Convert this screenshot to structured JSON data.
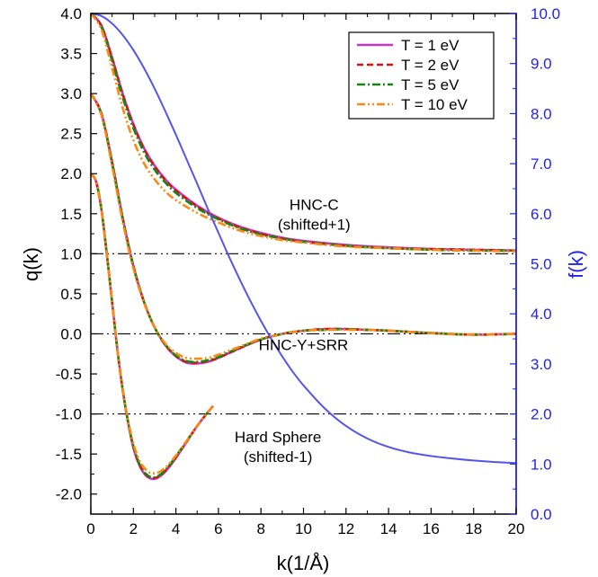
{
  "chart_data": {
    "type": "line",
    "xlabel": "k(1/Å)",
    "ylabel_left": "q(k)",
    "ylabel_right": "f(k)",
    "xlim": [
      0,
      20
    ],
    "ylim_left": [
      -2.25,
      4.0
    ],
    "ylim_right": [
      0.0,
      10.0
    ],
    "x_ticks": [
      "0",
      "2",
      "4",
      "6",
      "8",
      "10",
      "12",
      "14",
      "16",
      "18",
      "20"
    ],
    "y_ticks_left": [
      "4.0",
      "3.5",
      "3.0",
      "2.5",
      "2.0",
      "1.5",
      "1.0",
      "0.5",
      "0.0",
      "-0.5",
      "-1.0",
      "-1.5",
      "-2.0"
    ],
    "y_ticks_right": [
      "10.0",
      "9.0",
      "8.0",
      "7.0",
      "6.0",
      "5.0",
      "4.0",
      "3.0",
      "2.0",
      "1.0",
      "0.0"
    ],
    "reference_lines": [
      1.0,
      0.0,
      -1.0
    ],
    "legend": {
      "placement": "top-right",
      "entries": [
        {
          "label": "T = 1 eV",
          "color": "#cc33cc",
          "dash": "solid"
        },
        {
          "label": "T = 2 eV",
          "color": "#dd1111",
          "dash": "dashed"
        },
        {
          "label": "T = 5 eV",
          "color": "#118811",
          "dash": "dash-dot"
        },
        {
          "label": "T = 10 eV",
          "color": "#ff8811",
          "dash": "dash-dot-dot"
        }
      ]
    },
    "annotations": [
      {
        "text": "HNC-C",
        "x": 10.5,
        "y": 1.55
      },
      {
        "text": "(shifted+1)",
        "x": 10.5,
        "y": 1.3
      },
      {
        "text": "HNC-Y+SRR",
        "x": 10.0,
        "y": -0.2
      },
      {
        "text": "Hard Sphere",
        "x": 8.8,
        "y": -1.35
      },
      {
        "text": "(shifted-1)",
        "x": 8.8,
        "y": -1.6
      }
    ],
    "groups": [
      {
        "group": "HNC-C (shifted+1)",
        "axis": "left",
        "series": [
          {
            "legend": "T = 1 eV",
            "x": [
              0,
              0.5,
              1,
              1.5,
              2,
              2.5,
              3,
              3.5,
              4,
              5,
              6,
              7,
              8,
              9,
              10,
              12,
              14,
              16,
              18,
              20
            ],
            "y": [
              4.0,
              3.85,
              3.45,
              3.0,
              2.62,
              2.32,
              2.1,
              1.93,
              1.8,
              1.6,
              1.45,
              1.34,
              1.26,
              1.2,
              1.16,
              1.11,
              1.08,
              1.06,
              1.05,
              1.04
            ]
          },
          {
            "legend": "T = 2 eV",
            "x": [
              0,
              0.5,
              1,
              1.5,
              2,
              2.5,
              3,
              3.5,
              4,
              5,
              6,
              7,
              8,
              9,
              10,
              12,
              14,
              16,
              18,
              20
            ],
            "y": [
              4.0,
              3.84,
              3.44,
              2.99,
              2.61,
              2.31,
              2.09,
              1.92,
              1.79,
              1.59,
              1.44,
              1.33,
              1.25,
              1.19,
              1.15,
              1.1,
              1.07,
              1.06,
              1.05,
              1.04
            ]
          },
          {
            "legend": "T = 5 eV",
            "x": [
              0,
              0.5,
              1,
              1.5,
              2,
              2.5,
              3,
              3.5,
              4,
              5,
              6,
              7,
              8,
              9,
              10,
              12,
              14,
              16,
              18,
              20
            ],
            "y": [
              4.0,
              3.83,
              3.41,
              2.95,
              2.57,
              2.27,
              2.05,
              1.89,
              1.76,
              1.57,
              1.43,
              1.32,
              1.24,
              1.19,
              1.15,
              1.1,
              1.07,
              1.05,
              1.04,
              1.04
            ]
          },
          {
            "legend": "T = 10 eV",
            "x": [
              0,
              0.5,
              1,
              1.5,
              2,
              2.5,
              3,
              3.5,
              4,
              5,
              6,
              7,
              8,
              9,
              10,
              12,
              14,
              16,
              18,
              20
            ],
            "y": [
              4.0,
              3.8,
              3.32,
              2.82,
              2.42,
              2.13,
              1.93,
              1.78,
              1.67,
              1.51,
              1.39,
              1.29,
              1.22,
              1.17,
              1.14,
              1.09,
              1.07,
              1.05,
              1.04,
              1.03
            ]
          }
        ]
      },
      {
        "group": "HNC-Y+SRR",
        "axis": "left",
        "series": [
          {
            "legend": "T = 1 eV",
            "x": [
              0,
              0.5,
              1,
              1.5,
              2,
              2.5,
              3,
              3.5,
              4,
              4.5,
              5,
              5.5,
              6,
              7,
              8,
              9,
              10,
              11,
              12,
              13,
              14,
              16,
              18,
              20
            ],
            "y": [
              3.0,
              2.75,
              2.15,
              1.45,
              0.85,
              0.4,
              0.08,
              -0.14,
              -0.28,
              -0.36,
              -0.37,
              -0.35,
              -0.3,
              -0.18,
              -0.07,
              0.0,
              0.04,
              0.06,
              0.06,
              0.05,
              0.04,
              0.01,
              -0.01,
              0.0
            ]
          },
          {
            "legend": "T = 2 eV",
            "x": [
              0,
              0.5,
              1,
              1.5,
              2,
              2.5,
              3,
              3.5,
              4,
              4.5,
              5,
              5.5,
              6,
              7,
              8,
              9,
              10,
              11,
              12,
              13,
              14,
              16,
              18,
              20
            ],
            "y": [
              3.0,
              2.75,
              2.14,
              1.44,
              0.85,
              0.4,
              0.08,
              -0.14,
              -0.28,
              -0.35,
              -0.36,
              -0.34,
              -0.3,
              -0.18,
              -0.07,
              0.0,
              0.04,
              0.06,
              0.06,
              0.05,
              0.04,
              0.01,
              -0.01,
              0.0
            ]
          },
          {
            "legend": "T = 5 eV",
            "x": [
              0,
              0.5,
              1,
              1.5,
              2,
              2.5,
              3,
              3.5,
              4,
              4.5,
              5,
              5.5,
              6,
              7,
              8,
              9,
              10,
              11,
              12,
              13,
              14,
              16,
              18,
              20
            ],
            "y": [
              3.0,
              2.74,
              2.13,
              1.43,
              0.84,
              0.4,
              0.08,
              -0.13,
              -0.27,
              -0.34,
              -0.35,
              -0.33,
              -0.29,
              -0.17,
              -0.07,
              0.0,
              0.04,
              0.05,
              0.06,
              0.05,
              0.04,
              0.01,
              -0.01,
              0.0
            ]
          },
          {
            "legend": "T = 10 eV",
            "x": [
              0,
              0.5,
              1,
              1.5,
              2,
              2.5,
              3,
              3.5,
              4,
              4.5,
              5,
              5.5,
              6,
              7,
              8,
              9,
              10,
              11,
              12,
              13,
              14,
              16,
              18,
              20
            ],
            "y": [
              3.0,
              2.73,
              2.1,
              1.4,
              0.82,
              0.39,
              0.08,
              -0.12,
              -0.24,
              -0.3,
              -0.31,
              -0.3,
              -0.26,
              -0.16,
              -0.06,
              0.0,
              0.04,
              0.05,
              0.05,
              0.05,
              0.04,
              0.01,
              -0.01,
              0.0
            ]
          }
        ]
      },
      {
        "group": "Hard Sphere (shifted-1)",
        "axis": "left",
        "series": [
          {
            "legend": "T = 1 eV",
            "x": [
              0,
              0.25,
              0.5,
              0.75,
              1,
              1.25,
              1.5,
              1.75,
              2,
              2.25,
              2.5,
              2.75,
              3,
              3.25,
              3.5,
              3.75,
              4,
              4.5,
              5,
              5.5,
              5.75
            ],
            "y": [
              2.0,
              1.9,
              1.55,
              1.0,
              0.4,
              -0.2,
              -0.7,
              -1.1,
              -1.42,
              -1.62,
              -1.74,
              -1.8,
              -1.81,
              -1.78,
              -1.72,
              -1.64,
              -1.55,
              -1.35,
              -1.15,
              -0.98,
              -0.9
            ]
          },
          {
            "legend": "T = 2 eV",
            "x": [
              0,
              0.25,
              0.5,
              0.75,
              1,
              1.25,
              1.5,
              1.75,
              2,
              2.25,
              2.5,
              2.75,
              3,
              3.25,
              3.5,
              3.75,
              4,
              4.5,
              5,
              5.5,
              5.75
            ],
            "y": [
              2.0,
              1.9,
              1.55,
              1.0,
              0.4,
              -0.2,
              -0.7,
              -1.1,
              -1.41,
              -1.61,
              -1.73,
              -1.79,
              -1.8,
              -1.77,
              -1.71,
              -1.63,
              -1.54,
              -1.35,
              -1.15,
              -0.98,
              -0.9
            ]
          },
          {
            "legend": "T = 5 eV",
            "x": [
              0,
              0.25,
              0.5,
              0.75,
              1,
              1.25,
              1.5,
              1.75,
              2,
              2.25,
              2.5,
              2.75,
              3,
              3.25,
              3.5,
              3.75,
              4,
              4.5,
              5,
              5.5,
              5.75
            ],
            "y": [
              2.0,
              1.9,
              1.55,
              1.0,
              0.4,
              -0.2,
              -0.7,
              -1.1,
              -1.4,
              -1.6,
              -1.72,
              -1.78,
              -1.79,
              -1.76,
              -1.7,
              -1.62,
              -1.53,
              -1.34,
              -1.15,
              -0.98,
              -0.9
            ]
          },
          {
            "legend": "T = 10 eV",
            "x": [
              0,
              0.25,
              0.5,
              0.75,
              1,
              1.25,
              1.5,
              1.75,
              2,
              2.25,
              2.5,
              2.75,
              3,
              3.25,
              3.5,
              3.75,
              4,
              4.5,
              5,
              5.5,
              5.75
            ],
            "y": [
              2.0,
              1.9,
              1.55,
              1.0,
              0.4,
              -0.2,
              -0.69,
              -1.08,
              -1.37,
              -1.56,
              -1.67,
              -1.73,
              -1.74,
              -1.72,
              -1.67,
              -1.6,
              -1.52,
              -1.34,
              -1.15,
              -0.98,
              -0.9
            ]
          }
        ]
      },
      {
        "group": "f(k)",
        "axis": "right",
        "series": [
          {
            "x": [
              0,
              0.5,
              1,
              1.5,
              2,
              2.5,
              3,
              3.5,
              4,
              4.5,
              5,
              5.5,
              6,
              6.5,
              7,
              7.5,
              8,
              8.5,
              9,
              9.5,
              10,
              11,
              12,
              13,
              14,
              15,
              16,
              17,
              18,
              19,
              20
            ],
            "y": [
              10.0,
              9.95,
              9.8,
              9.57,
              9.27,
              8.91,
              8.5,
              8.05,
              7.58,
              7.09,
              6.6,
              6.1,
              5.62,
              5.14,
              4.69,
              4.26,
              3.86,
              3.49,
              3.15,
              2.84,
              2.57,
              2.11,
              1.76,
              1.51,
              1.34,
              1.23,
              1.16,
              1.11,
              1.07,
              1.04,
              1.02
            ],
            "color": "#5555ee"
          }
        ]
      }
    ]
  }
}
